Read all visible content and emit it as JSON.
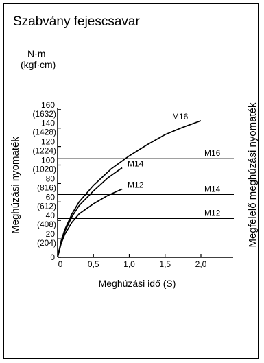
{
  "chart_data": {
    "type": "line",
    "title": "Szabvány fejescsavar",
    "y_unit_main": "N·m",
    "y_unit_alt": "(kgf·cm)",
    "xlabel": "Meghúzási idő (S)",
    "ylabel": "Meghúzási nyomaték",
    "y2label": "Megfelelő meghúzási nyomaték",
    "xlim": [
      0,
      2.25
    ],
    "ylim": [
      0,
      160
    ],
    "x_ticks": [
      {
        "value": 0,
        "label": "0"
      },
      {
        "value": 0.5,
        "label": "0,5"
      },
      {
        "value": 1.0,
        "label": "1,0"
      },
      {
        "value": 1.5,
        "label": "1,5"
      },
      {
        "value": 2.0,
        "label": "2,0"
      }
    ],
    "y_ticks": [
      {
        "value": 0,
        "label": "0",
        "alt": ""
      },
      {
        "value": 20,
        "label": "20",
        "alt": "(204)"
      },
      {
        "value": 40,
        "label": "40",
        "alt": "(408)"
      },
      {
        "value": 60,
        "label": "60",
        "alt": "(612)"
      },
      {
        "value": 80,
        "label": "80",
        "alt": "(816)"
      },
      {
        "value": 100,
        "label": "100",
        "alt": "(1020)"
      },
      {
        "value": 120,
        "label": "120",
        "alt": "(1224)"
      },
      {
        "value": 140,
        "label": "140",
        "alt": "(1428)"
      },
      {
        "value": 160,
        "label": "160",
        "alt": "(1632)"
      }
    ],
    "series": [
      {
        "name": "M16",
        "x": [
          0,
          0.05,
          0.1,
          0.2,
          0.3,
          0.5,
          0.75,
          1.0,
          1.25,
          1.5,
          1.75,
          2.0
        ],
        "y": [
          0,
          18,
          30,
          47,
          60,
          78,
          96,
          110,
          122,
          133,
          141,
          148
        ]
      },
      {
        "name": "M14",
        "x": [
          0,
          0.05,
          0.1,
          0.2,
          0.3,
          0.5,
          0.7,
          0.9
        ],
        "y": [
          0,
          17,
          28,
          44,
          56,
          72,
          86,
          97
        ]
      },
      {
        "name": "M12",
        "x": [
          0,
          0.05,
          0.1,
          0.2,
          0.3,
          0.5,
          0.7,
          0.9
        ],
        "y": [
          0,
          15,
          25,
          38,
          47,
          58,
          67,
          74
        ]
      }
    ],
    "reference_lines": [
      {
        "name": "M16",
        "y": 107
      },
      {
        "name": "M14",
        "y": 68
      },
      {
        "name": "M12",
        "y": 42
      }
    ],
    "grid": false,
    "legend": "none"
  }
}
